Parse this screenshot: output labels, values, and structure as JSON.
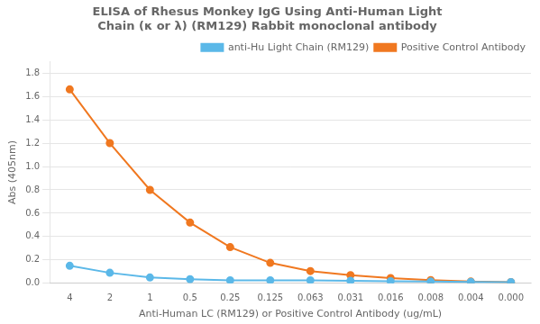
{
  "chart_data": {
    "type": "line",
    "title": "ELISA of Rhesus Monkey IgG Using Anti-Human Light\nChain (κ or λ) (RM129) Rabbit monoclonal antibody",
    "xlabel": "Anti-Human LC (RM129) or Positive Control Antibody (ug/mL)",
    "ylabel": "Abs (405nm)",
    "categories": [
      "4",
      "2",
      "1",
      "0.5",
      "0.25",
      "0.125",
      "0.063",
      "0.031",
      "0.016",
      "0.008",
      "0.004",
      "0.000"
    ],
    "series": [
      {
        "name": "anti-Hu Light Chain (RM129)",
        "color": "#5BB8E8",
        "values": [
          0.15,
          0.09,
          0.05,
          0.035,
          0.025,
          0.025,
          0.025,
          0.022,
          0.018,
          0.015,
          0.012,
          0.01
        ]
      },
      {
        "name": "Positive Control Antibody",
        "color": "#F07820",
        "values": [
          1.66,
          1.2,
          0.8,
          0.52,
          0.31,
          0.175,
          0.105,
          0.07,
          0.045,
          0.028,
          0.015,
          0.01
        ]
      }
    ],
    "ylim": [
      0,
      1.9
    ],
    "yticks": [
      {
        "value": 0.0,
        "label": "0.0"
      },
      0.2,
      0.4,
      0.6,
      0.8,
      {
        "value": 1.0,
        "label": "1.0"
      },
      1.2,
      1.4,
      1.6,
      1.8
    ],
    "grid": true,
    "legend": "upper right",
    "marker": "circle"
  }
}
